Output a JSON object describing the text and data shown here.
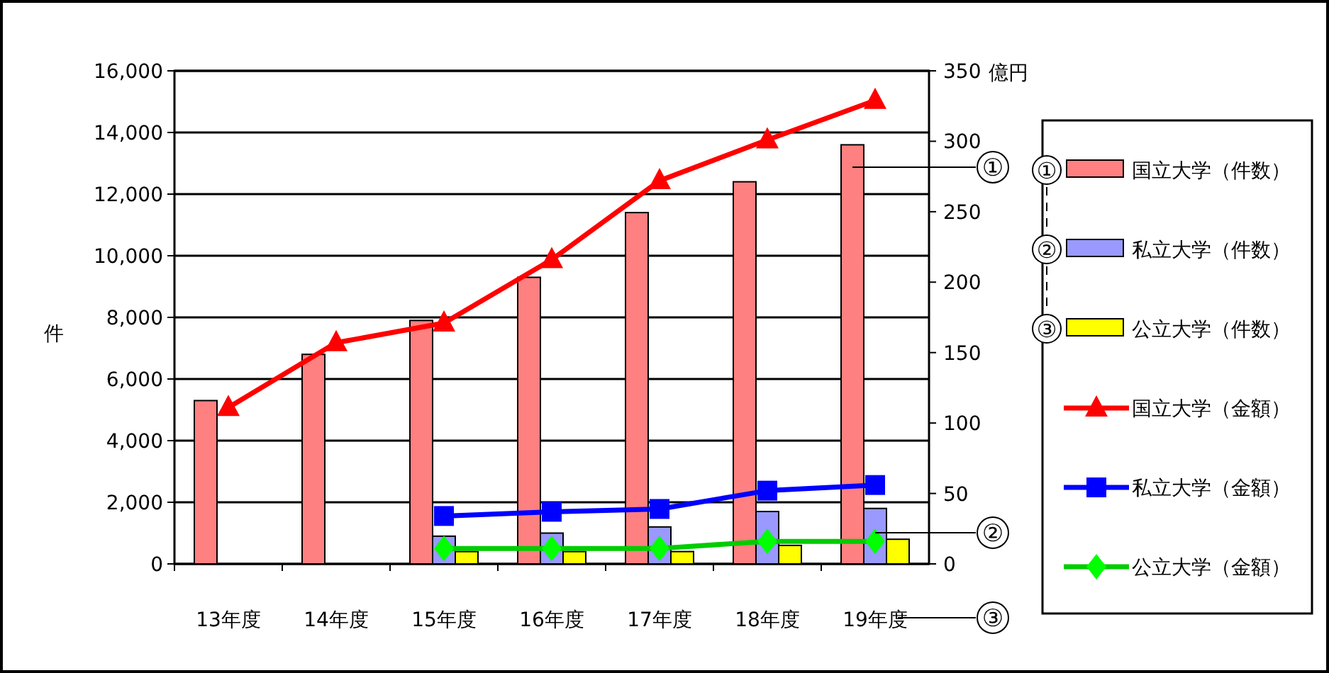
{
  "chart_data": {
    "type": "bar",
    "categories": [
      "13年度",
      "14年度",
      "15年度",
      "16年度",
      "17年度",
      "18年度",
      "19年度"
    ],
    "ylabel": "件",
    "y2label": "億円",
    "ylim": [
      0,
      16000
    ],
    "yticks": [
      {
        "value": 0,
        "label": "0"
      },
      {
        "value": 2000,
        "label": "2,000"
      },
      {
        "value": 4000,
        "label": "4,000"
      },
      {
        "value": 6000,
        "label": "6,000"
      },
      {
        "value": 8000,
        "label": "8,000"
      },
      {
        "value": 10000,
        "label": "10,000"
      },
      {
        "value": 12000,
        "label": "12,000"
      },
      {
        "value": 14000,
        "label": "14,000"
      },
      {
        "value": 16000,
        "label": "16,000"
      }
    ],
    "y2lim": [
      0,
      350
    ],
    "y2ticks": [
      0,
      50,
      100,
      150,
      200,
      250,
      300,
      350
    ],
    "grid": "y",
    "legend": "right",
    "series": [
      {
        "name": "国立大学（件数）",
        "color": "#ff8080",
        "values": [
          5300,
          6800,
          7900,
          9300,
          11400,
          12400,
          13600
        ]
      },
      {
        "name": "私立大学（件数）",
        "color": "#9999ff",
        "values": [
          null,
          null,
          900,
          1000,
          1200,
          1700,
          1800
        ]
      },
      {
        "name": "公立大学（件数）",
        "color": "#ffff00",
        "values": [
          null,
          null,
          400,
          400,
          400,
          600,
          800
        ]
      },
      {
        "name": "国立大学（金額）",
        "type": "line",
        "axis": "y2",
        "color": "#ff0000",
        "marker": "triangle",
        "values": [
          111,
          157,
          171,
          216,
          272,
          301,
          329
        ]
      },
      {
        "name": "私立大学（金額）",
        "type": "line",
        "axis": "y2",
        "color": "#0000ff",
        "marker": "square",
        "values": [
          null,
          null,
          34,
          37,
          39,
          52,
          56
        ]
      },
      {
        "name": "公立大学（金額）",
        "type": "line",
        "axis": "y2",
        "color": "#00cc00",
        "marker": "diamond",
        "values": [
          null,
          null,
          11,
          11,
          11,
          16,
          16
        ]
      }
    ],
    "annotations": [
      "①",
      "②",
      "③"
    ]
  }
}
